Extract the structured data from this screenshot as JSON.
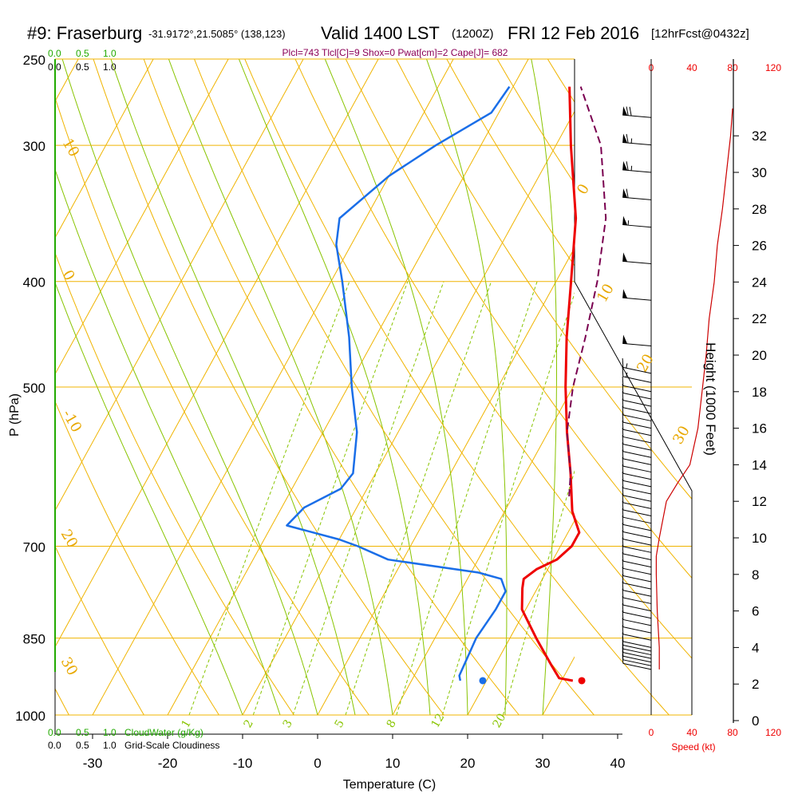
{
  "header": {
    "station": "#9: Fraserburg",
    "coords": "-31.9172°,21.5085° (138,123)",
    "valid": "Valid 1400 LST",
    "zulu": "(1200Z)",
    "date": "FRI 12 Feb 2016",
    "fcst": "[12hrFcst@0432z]",
    "params": "Plcl=743 Tlcl[C]=9 Shox=0 Pwat[cm]=2 Cape[J]= 682"
  },
  "legend": {
    "cloudwater_ticks": [
      "0.0",
      "0.5",
      "1.0"
    ],
    "cloudiness_ticks": [
      "0.0",
      "0.5",
      "1.0"
    ],
    "cloudwater_label": "CloudWater (g/Kg)",
    "cloudiness_label": "Grid-Scale Cloudiness",
    "speed_ticks": [
      "0",
      "40",
      "80",
      "120"
    ],
    "speed_label": "Speed (kt)"
  },
  "colors": {
    "isobar": "#f0b400",
    "isotherm": "#f0b400",
    "dry_adiabat": "#f0b400",
    "moist_adiabat": "#88c400",
    "mixing_ratio": "#88c400",
    "temperature": "#ee0000",
    "dewpoint": "#1a6ee8",
    "parcel": "#7a0050",
    "cloud": "#22aa00",
    "speed": "#cc0000"
  },
  "chart_data": {
    "type": "line",
    "title": "#9: Fraserburg",
    "xlabel": "Temperature (C)",
    "ylabel": "P (hPa)",
    "y2label": "Height (1000 Feet)",
    "xlim": [
      -35,
      45
    ],
    "ylim": [
      1000,
      250
    ],
    "x_ticks": [
      -30,
      -20,
      -10,
      0,
      10,
      20,
      30,
      40
    ],
    "p_ticks": [
      250,
      300,
      400,
      500,
      700,
      850,
      1000
    ],
    "height_ticks": [
      0,
      2,
      4,
      6,
      8,
      10,
      12,
      14,
      16,
      18,
      20,
      22,
      24,
      26,
      28,
      30,
      32
    ],
    "dry_adiabat_labels": [
      {
        "text": "-10",
        "side": "left"
      },
      {
        "text": "0",
        "side": "left"
      },
      {
        "text": "10",
        "side": "left"
      },
      {
        "text": "20",
        "side": "left"
      },
      {
        "text": "30",
        "side": "left"
      },
      {
        "text": "0",
        "side": "right"
      },
      {
        "text": "10",
        "side": "right"
      },
      {
        "text": "20",
        "side": "right"
      },
      {
        "text": "30",
        "side": "right"
      }
    ],
    "mixing_ratio_labels": [
      "1",
      "2",
      "3",
      "5",
      "8",
      "12",
      "20"
    ],
    "series": [
      {
        "name": "temperature",
        "points": [
          {
            "p": 930,
            "t": 31.5
          },
          {
            "p": 925,
            "t": 29.5
          },
          {
            "p": 900,
            "t": 27.5
          },
          {
            "p": 850,
            "t": 23.5
          },
          {
            "p": 800,
            "t": 19.5
          },
          {
            "p": 765,
            "t": 18.0
          },
          {
            "p": 750,
            "t": 17.5
          },
          {
            "p": 735,
            "t": 18.5
          },
          {
            "p": 720,
            "t": 20.5
          },
          {
            "p": 700,
            "t": 21.5
          },
          {
            "p": 680,
            "t": 21.5
          },
          {
            "p": 650,
            "t": 19.0
          },
          {
            "p": 600,
            "t": 16.0
          },
          {
            "p": 550,
            "t": 12.5
          },
          {
            "p": 500,
            "t": 9.0
          },
          {
            "p": 450,
            "t": 5.5
          },
          {
            "p": 400,
            "t": 2.0
          },
          {
            "p": 350,
            "t": -2.0
          },
          {
            "p": 300,
            "t": -8.0
          },
          {
            "p": 265,
            "t": -12.5
          }
        ]
      },
      {
        "name": "dewpoint",
        "points": [
          {
            "p": 930,
            "t": 16.5
          },
          {
            "p": 920,
            "t": 16.0
          },
          {
            "p": 850,
            "t": 15.5
          },
          {
            "p": 800,
            "t": 16.0
          },
          {
            "p": 770,
            "t": 16.0
          },
          {
            "p": 750,
            "t": 14.5
          },
          {
            "p": 740,
            "t": 11.0
          },
          {
            "p": 720,
            "t": -2.0
          },
          {
            "p": 700,
            "t": -7.0
          },
          {
            "p": 690,
            "t": -10.0
          },
          {
            "p": 670,
            "t": -18.0
          },
          {
            "p": 645,
            "t": -17.0
          },
          {
            "p": 620,
            "t": -13.5
          },
          {
            "p": 600,
            "t": -13.0
          },
          {
            "p": 550,
            "t": -15.5
          },
          {
            "p": 500,
            "t": -19.5
          },
          {
            "p": 450,
            "t": -23.5
          },
          {
            "p": 400,
            "t": -28.5
          },
          {
            "p": 370,
            "t": -32.0
          },
          {
            "p": 350,
            "t": -33.5
          },
          {
            "p": 320,
            "t": -30.0
          },
          {
            "p": 300,
            "t": -26.0
          },
          {
            "p": 280,
            "t": -21.0
          },
          {
            "p": 265,
            "t": -20.5
          }
        ]
      },
      {
        "name": "parcel",
        "points": [
          {
            "p": 630,
            "t": 17.5
          },
          {
            "p": 600,
            "t": 16.0
          },
          {
            "p": 550,
            "t": 12.5
          },
          {
            "p": 500,
            "t": 10.0
          },
          {
            "p": 450,
            "t": 8.0
          },
          {
            "p": 400,
            "t": 5.5
          },
          {
            "p": 350,
            "t": 2.0
          },
          {
            "p": 300,
            "t": -4.0
          },
          {
            "p": 265,
            "t": -11.0
          }
        ]
      }
    ],
    "surface_temperature": {
      "p": 930,
      "t": 32.7
    },
    "surface_dewpoint": {
      "p": 930,
      "t": 19.5
    },
    "wind_speed_profile": [
      {
        "h": 2.8,
        "kt": 8
      },
      {
        "h": 4,
        "kt": 8
      },
      {
        "h": 6,
        "kt": 6
      },
      {
        "h": 8,
        "kt": 5
      },
      {
        "h": 9,
        "kt": 5
      },
      {
        "h": 10,
        "kt": 8
      },
      {
        "h": 12,
        "kt": 15
      },
      {
        "h": 13,
        "kt": 26
      },
      {
        "h": 14,
        "kt": 38
      },
      {
        "h": 16,
        "kt": 46
      },
      {
        "h": 18,
        "kt": 50
      },
      {
        "h": 20,
        "kt": 54
      },
      {
        "h": 22,
        "kt": 57
      },
      {
        "h": 24,
        "kt": 62
      },
      {
        "h": 26,
        "kt": 65
      },
      {
        "h": 28,
        "kt": 70
      },
      {
        "h": 30,
        "kt": 74
      },
      {
        "h": 32,
        "kt": 78
      },
      {
        "h": 33.5,
        "kt": 80
      }
    ],
    "wind_barbs": [
      {
        "h": 2.8,
        "kt": 10
      },
      {
        "h": 3.0,
        "kt": 10
      },
      {
        "h": 3.2,
        "kt": 10
      },
      {
        "h": 3.4,
        "kt": 10
      },
      {
        "h": 3.6,
        "kt": 10
      },
      {
        "h": 3.8,
        "kt": 10
      },
      {
        "h": 4.0,
        "kt": 10
      },
      {
        "h": 4.4,
        "kt": 10
      },
      {
        "h": 4.8,
        "kt": 10
      },
      {
        "h": 5.2,
        "kt": 10
      },
      {
        "h": 5.6,
        "kt": 10
      },
      {
        "h": 6.0,
        "kt": 10
      },
      {
        "h": 6.4,
        "kt": 10
      },
      {
        "h": 6.8,
        "kt": 10
      },
      {
        "h": 7.2,
        "kt": 10
      },
      {
        "h": 7.6,
        "kt": 10
      },
      {
        "h": 8.0,
        "kt": 10
      },
      {
        "h": 8.4,
        "kt": 10
      },
      {
        "h": 8.8,
        "kt": 10
      },
      {
        "h": 9.2,
        "kt": 10
      },
      {
        "h": 9.6,
        "kt": 10
      },
      {
        "h": 10.0,
        "kt": 10
      },
      {
        "h": 10.4,
        "kt": 10
      },
      {
        "h": 10.8,
        "kt": 10
      },
      {
        "h": 11.2,
        "kt": 10
      },
      {
        "h": 11.6,
        "kt": 10
      },
      {
        "h": 12.0,
        "kt": 10
      },
      {
        "h": 12.4,
        "kt": 10
      },
      {
        "h": 12.8,
        "kt": 10
      },
      {
        "h": 13.2,
        "kt": 10
      },
      {
        "h": 13.6,
        "kt": 10
      },
      {
        "h": 14.0,
        "kt": 10
      },
      {
        "h": 14.4,
        "kt": 10
      },
      {
        "h": 14.8,
        "kt": 10
      },
      {
        "h": 15.2,
        "kt": 10
      },
      {
        "h": 15.6,
        "kt": 10
      },
      {
        "h": 16.0,
        "kt": 10
      },
      {
        "h": 16.4,
        "kt": 10
      },
      {
        "h": 16.8,
        "kt": 10
      },
      {
        "h": 17.2,
        "kt": 10
      },
      {
        "h": 17.6,
        "kt": 10
      },
      {
        "h": 18.0,
        "kt": 10
      },
      {
        "h": 18.5,
        "kt": 15
      },
      {
        "h": 19.0,
        "kt": 15
      },
      {
        "h": 20.5,
        "kt": 50
      },
      {
        "h": 23.0,
        "kt": 50
      },
      {
        "h": 25.0,
        "kt": 50
      },
      {
        "h": 27.0,
        "kt": 55
      },
      {
        "h": 28.5,
        "kt": 60
      },
      {
        "h": 30.0,
        "kt": 65
      },
      {
        "h": 31.5,
        "kt": 65
      },
      {
        "h": 33.0,
        "kt": 70
      }
    ]
  }
}
